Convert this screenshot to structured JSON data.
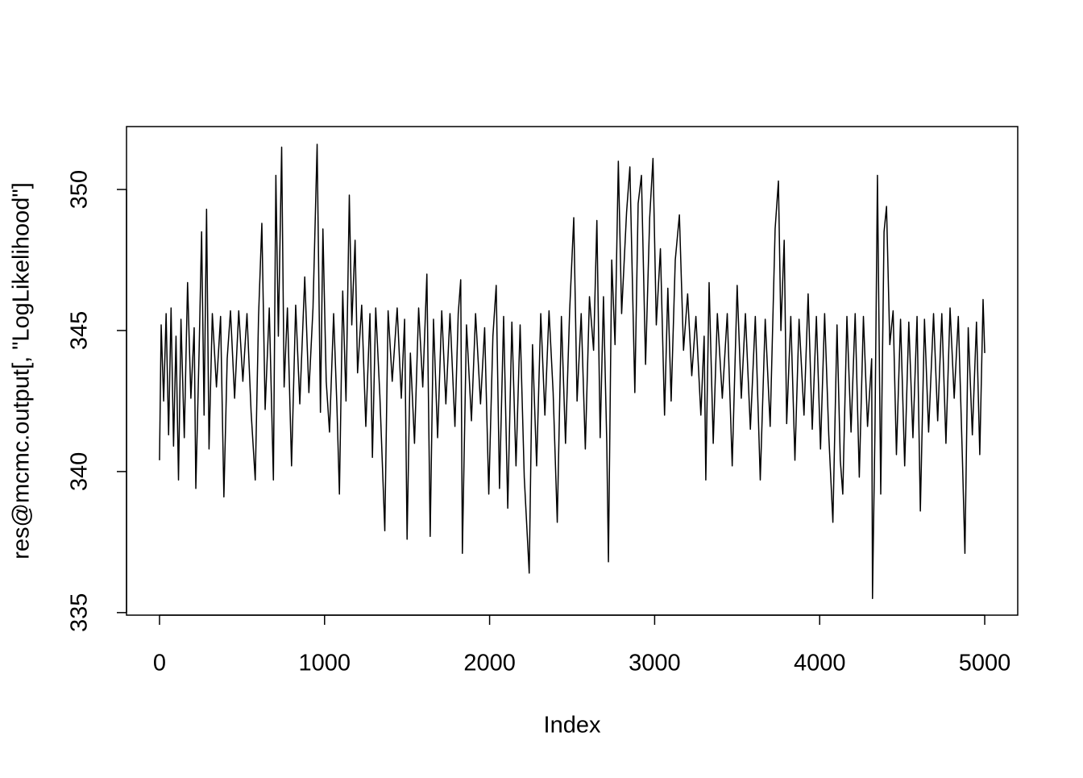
{
  "chart_data": {
    "type": "line",
    "xlabel": "Index",
    "ylabel": "res@mcmc.output[, \"LogLikelihood\"]",
    "color": "#000000",
    "xlim": [
      -200,
      5200
    ],
    "ylim": [
      334.91,
      352.23
    ],
    "xticks": [
      0,
      1000,
      2000,
      3000,
      4000,
      5000
    ],
    "yticks": [
      335,
      340,
      345,
      350
    ],
    "x": [
      0,
      10,
      25,
      40,
      55,
      70,
      85,
      100,
      115,
      130,
      150,
      170,
      190,
      210,
      220,
      240,
      255,
      270,
      285,
      300,
      320,
      345,
      370,
      390,
      410,
      430,
      455,
      480,
      505,
      530,
      555,
      580,
      600,
      620,
      640,
      665,
      690,
      705,
      720,
      740,
      755,
      775,
      800,
      825,
      850,
      880,
      905,
      930,
      955,
      975,
      990,
      1010,
      1030,
      1055,
      1075,
      1090,
      1110,
      1130,
      1150,
      1165,
      1185,
      1200,
      1225,
      1250,
      1275,
      1290,
      1310,
      1335,
      1365,
      1385,
      1410,
      1440,
      1465,
      1485,
      1500,
      1520,
      1545,
      1570,
      1595,
      1620,
      1640,
      1660,
      1685,
      1710,
      1735,
      1760,
      1790,
      1810,
      1825,
      1835,
      1860,
      1890,
      1915,
      1945,
      1970,
      1995,
      2020,
      2040,
      2060,
      2085,
      2110,
      2135,
      2160,
      2185,
      2210,
      2240,
      2260,
      2285,
      2310,
      2335,
      2360,
      2385,
      2410,
      2435,
      2460,
      2485,
      2510,
      2530,
      2555,
      2580,
      2605,
      2630,
      2650,
      2670,
      2690,
      2710,
      2720,
      2740,
      2760,
      2780,
      2800,
      2830,
      2850,
      2880,
      2900,
      2920,
      2945,
      2970,
      2990,
      3010,
      3035,
      3060,
      3080,
      3100,
      3125,
      3150,
      3175,
      3200,
      3225,
      3250,
      3280,
      3300,
      3310,
      3330,
      3355,
      3380,
      3410,
      3440,
      3470,
      3500,
      3525,
      3550,
      3580,
      3610,
      3640,
      3670,
      3700,
      3730,
      3750,
      3765,
      3785,
      3800,
      3825,
      3850,
      3875,
      3905,
      3930,
      3955,
      3980,
      4005,
      4030,
      4055,
      4080,
      4105,
      4125,
      4140,
      4165,
      4190,
      4215,
      4240,
      4265,
      4290,
      4315,
      4320,
      4335,
      4350,
      4370,
      4390,
      4405,
      4425,
      4445,
      4465,
      4490,
      4515,
      4540,
      4565,
      4590,
      4610,
      4635,
      4660,
      4690,
      4715,
      4740,
      4765,
      4790,
      4815,
      4840,
      4865,
      4880,
      4900,
      4925,
      4950,
      4970,
      4990,
      5000
    ],
    "values": [
      340.4,
      345.2,
      342.5,
      345.6,
      341.3,
      345.8,
      340.9,
      344.8,
      339.7,
      345.4,
      341.2,
      346.7,
      342.6,
      345.1,
      339.4,
      344.3,
      348.5,
      342.0,
      349.3,
      340.8,
      345.6,
      343.0,
      345.5,
      339.1,
      344.0,
      345.7,
      342.6,
      345.7,
      343.2,
      345.6,
      342.1,
      339.7,
      345.5,
      348.8,
      342.2,
      345.8,
      339.7,
      350.5,
      344.8,
      351.5,
      343.0,
      345.8,
      340.2,
      345.9,
      342.4,
      346.9,
      342.8,
      345.8,
      351.6,
      342.1,
      348.6,
      343.2,
      341.4,
      345.6,
      342.3,
      339.2,
      346.4,
      342.5,
      349.8,
      345.2,
      348.2,
      343.5,
      345.9,
      341.6,
      345.6,
      340.5,
      345.8,
      342.7,
      337.9,
      345.7,
      343.2,
      345.8,
      342.6,
      345.4,
      337.6,
      344.2,
      341.0,
      345.8,
      343.0,
      347.0,
      337.7,
      345.4,
      341.2,
      345.7,
      342.4,
      345.6,
      341.6,
      345.6,
      346.8,
      337.1,
      345.2,
      341.8,
      345.6,
      342.4,
      345.1,
      339.2,
      344.8,
      346.6,
      339.4,
      345.5,
      338.7,
      345.3,
      340.2,
      345.2,
      339.8,
      336.4,
      344.5,
      340.2,
      345.6,
      342.0,
      345.7,
      342.8,
      338.2,
      345.5,
      341.0,
      345.7,
      349.0,
      342.5,
      345.6,
      340.8,
      346.2,
      344.3,
      348.9,
      341.2,
      346.2,
      341.0,
      336.8,
      347.5,
      344.5,
      351.0,
      345.6,
      349.2,
      350.8,
      342.8,
      349.5,
      350.5,
      343.8,
      349.0,
      351.1,
      345.2,
      347.9,
      342.0,
      346.5,
      342.5,
      347.5,
      349.1,
      344.3,
      346.3,
      343.4,
      345.5,
      342.0,
      344.8,
      339.7,
      346.7,
      341.0,
      345.6,
      342.6,
      345.6,
      340.2,
      346.6,
      342.6,
      345.6,
      341.5,
      345.5,
      339.7,
      345.4,
      341.6,
      348.6,
      350.3,
      345.0,
      348.2,
      341.7,
      345.5,
      340.4,
      345.4,
      342.0,
      346.3,
      341.5,
      345.5,
      340.8,
      345.6,
      341.3,
      338.2,
      345.2,
      340.4,
      339.2,
      345.5,
      341.4,
      345.6,
      339.8,
      345.5,
      341.6,
      344.0,
      335.5,
      341.5,
      350.5,
      339.2,
      348.5,
      349.4,
      344.5,
      345.7,
      340.6,
      345.4,
      340.2,
      345.3,
      341.2,
      345.5,
      338.6,
      345.4,
      341.4,
      345.6,
      341.8,
      345.6,
      341.0,
      345.8,
      342.6,
      345.5,
      340.4,
      337.1,
      345.1,
      341.3,
      345.3,
      340.6,
      346.1,
      344.2
    ]
  }
}
